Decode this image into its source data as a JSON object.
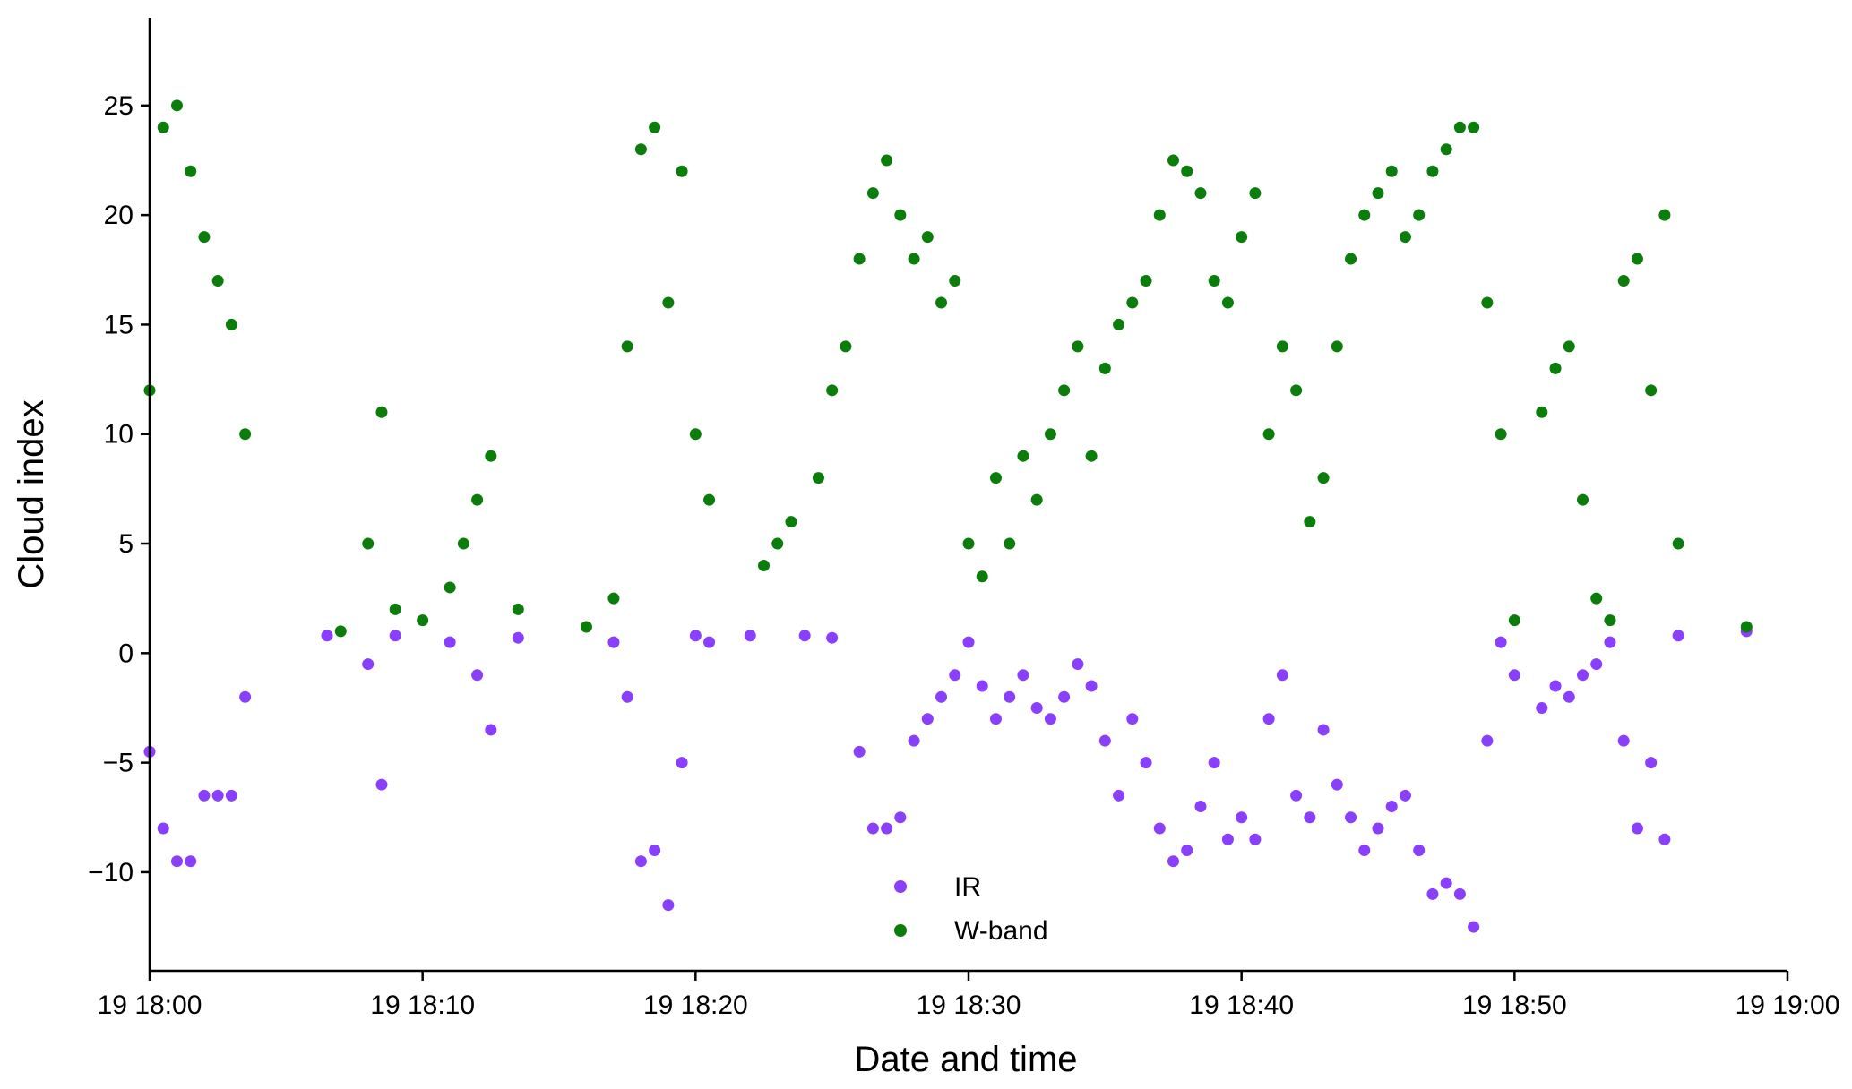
{
  "colors": {
    "ir": "#8a3ffc",
    "wband": "#0a7d0a",
    "axis": "#000000"
  },
  "chart_data": {
    "type": "scatter",
    "title": "",
    "xlabel": "Date and time",
    "ylabel": "Cloud index",
    "xlim": [
      "19 18:00",
      "19 19:00"
    ],
    "ylim": [
      -14.5,
      29
    ],
    "x_ticks": [
      "19 18:00",
      "19 18:10",
      "19 18:20",
      "19 18:30",
      "19 18:40",
      "19 18:50",
      "19 19:00"
    ],
    "y_ticks": [
      -10,
      -5,
      0,
      5,
      10,
      15,
      20,
      25
    ],
    "y_tick_labels": [
      "−10",
      "−5",
      "0",
      "5",
      "10",
      "15",
      "20",
      "25"
    ],
    "grid": false,
    "legend_position": "bottom-center",
    "series": [
      {
        "name": "IR",
        "color": "#8a3ffc",
        "x": [
          "18:00:00",
          "18:00:30",
          "18:01:00",
          "18:01:30",
          "18:02:00",
          "18:02:30",
          "18:03:00",
          "18:03:30",
          "18:06:30",
          "18:08:00",
          "18:08:30",
          "18:09:00",
          "18:11:00",
          "18:12:00",
          "18:12:30",
          "18:13:30",
          "18:17:00",
          "18:17:30",
          "18:18:00",
          "18:18:30",
          "18:19:00",
          "18:19:30",
          "18:20:00",
          "18:20:30",
          "18:22:00",
          "18:24:00",
          "18:25:00",
          "18:26:00",
          "18:26:30",
          "18:27:00",
          "18:27:30",
          "18:28:00",
          "18:28:30",
          "18:29:00",
          "18:29:30",
          "18:30:00",
          "18:30:30",
          "18:31:00",
          "18:31:30",
          "18:32:00",
          "18:32:30",
          "18:33:00",
          "18:33:30",
          "18:34:00",
          "18:34:30",
          "18:35:00",
          "18:35:30",
          "18:36:00",
          "18:36:30",
          "18:37:00",
          "18:37:30",
          "18:38:00",
          "18:38:30",
          "18:39:00",
          "18:39:30",
          "18:40:00",
          "18:40:30",
          "18:41:00",
          "18:41:30",
          "18:42:00",
          "18:42:30",
          "18:43:00",
          "18:43:30",
          "18:44:00",
          "18:44:30",
          "18:45:00",
          "18:45:30",
          "18:46:00",
          "18:46:30",
          "18:47:00",
          "18:47:30",
          "18:48:00",
          "18:48:30",
          "18:49:00",
          "18:49:30",
          "18:50:00",
          "18:51:00",
          "18:51:30",
          "18:52:00",
          "18:52:30",
          "18:53:00",
          "18:53:30",
          "18:54:00",
          "18:54:30",
          "18:55:00",
          "18:55:30",
          "18:56:00",
          "18:58:30"
        ],
        "y": [
          -4.5,
          -8.0,
          -9.5,
          -9.5,
          -6.5,
          -6.5,
          -6.5,
          -2.0,
          0.8,
          -0.5,
          -6.0,
          0.8,
          0.5,
          -1.0,
          -3.5,
          0.7,
          0.5,
          -2.0,
          -9.5,
          -9.0,
          -11.5,
          -5.0,
          0.8,
          0.5,
          0.8,
          0.8,
          0.7,
          -4.5,
          -8.0,
          -8.0,
          -7.5,
          -4.0,
          -3.0,
          -2.0,
          -1.0,
          0.5,
          -1.5,
          -3.0,
          -2.0,
          -1.0,
          -2.5,
          -3.0,
          -2.0,
          -0.5,
          -1.5,
          -4.0,
          -6.5,
          -3.0,
          -5.0,
          -8.0,
          -9.5,
          -9.0,
          -7.0,
          -5.0,
          -8.5,
          -7.5,
          -8.5,
          -3.0,
          -1.0,
          -6.5,
          -7.5,
          -3.5,
          -6.0,
          -7.5,
          -9.0,
          -8.0,
          -7.0,
          -6.5,
          -9.0,
          -11.0,
          -10.5,
          -11.0,
          -12.5,
          -4.0,
          0.5,
          -1.0,
          -2.5,
          -1.5,
          -2.0,
          -1.0,
          -0.5,
          0.5,
          -4.0,
          -8.0,
          -5.0,
          -8.5,
          0.8,
          1.0
        ]
      },
      {
        "name": "W-band",
        "color": "#0a7d0a",
        "x": [
          "18:00:00",
          "18:00:30",
          "18:01:00",
          "18:01:30",
          "18:02:00",
          "18:02:30",
          "18:03:00",
          "18:03:30",
          "18:07:00",
          "18:08:00",
          "18:08:30",
          "18:09:00",
          "18:10:00",
          "18:11:00",
          "18:11:30",
          "18:12:00",
          "18:12:30",
          "18:13:30",
          "18:16:00",
          "18:17:00",
          "18:17:30",
          "18:18:00",
          "18:18:30",
          "18:19:00",
          "18:19:30",
          "18:20:00",
          "18:20:30",
          "18:22:30",
          "18:23:00",
          "18:23:30",
          "18:24:30",
          "18:25:00",
          "18:25:30",
          "18:26:00",
          "18:26:30",
          "18:27:00",
          "18:27:30",
          "18:28:00",
          "18:28:30",
          "18:29:00",
          "18:29:30",
          "18:30:00",
          "18:30:30",
          "18:31:00",
          "18:31:30",
          "18:32:00",
          "18:32:30",
          "18:33:00",
          "18:33:30",
          "18:34:00",
          "18:34:30",
          "18:35:00",
          "18:35:30",
          "18:36:00",
          "18:36:30",
          "18:37:00",
          "18:37:30",
          "18:38:00",
          "18:38:30",
          "18:39:00",
          "18:39:30",
          "18:40:00",
          "18:40:30",
          "18:41:00",
          "18:41:30",
          "18:42:00",
          "18:42:30",
          "18:43:00",
          "18:43:30",
          "18:44:00",
          "18:44:30",
          "18:45:00",
          "18:45:30",
          "18:46:00",
          "18:46:30",
          "18:47:00",
          "18:47:30",
          "18:48:00",
          "18:48:30",
          "18:49:00",
          "18:49:30",
          "18:50:00",
          "18:51:00",
          "18:51:30",
          "18:52:00",
          "18:52:30",
          "18:53:00",
          "18:53:30",
          "18:54:00",
          "18:54:30",
          "18:55:00",
          "18:55:30",
          "18:56:00",
          "18:58:30"
        ],
        "y": [
          12.0,
          24.0,
          25.0,
          22.0,
          19.0,
          17.0,
          15.0,
          10.0,
          1.0,
          5.0,
          11.0,
          2.0,
          1.5,
          3.0,
          5.0,
          7.0,
          9.0,
          2.0,
          1.2,
          2.5,
          14.0,
          23.0,
          24.0,
          16.0,
          22.0,
          10.0,
          7.0,
          4.0,
          5.0,
          6.0,
          8.0,
          12.0,
          14.0,
          18.0,
          21.0,
          22.5,
          20.0,
          18.0,
          19.0,
          16.0,
          17.0,
          5.0,
          3.5,
          8.0,
          5.0,
          9.0,
          7.0,
          10.0,
          12.0,
          14.0,
          9.0,
          13.0,
          15.0,
          16.0,
          17.0,
          20.0,
          22.5,
          22.0,
          21.0,
          17.0,
          16.0,
          19.0,
          21.0,
          10.0,
          14.0,
          12.0,
          6.0,
          8.0,
          14.0,
          18.0,
          20.0,
          21.0,
          22.0,
          19.0,
          20.0,
          22.0,
          23.0,
          24.0,
          24.0,
          16.0,
          10.0,
          1.5,
          11.0,
          13.0,
          14.0,
          7.0,
          2.5,
          1.5,
          17.0,
          18.0,
          12.0,
          20.0,
          5.0,
          1.2
        ]
      }
    ]
  }
}
